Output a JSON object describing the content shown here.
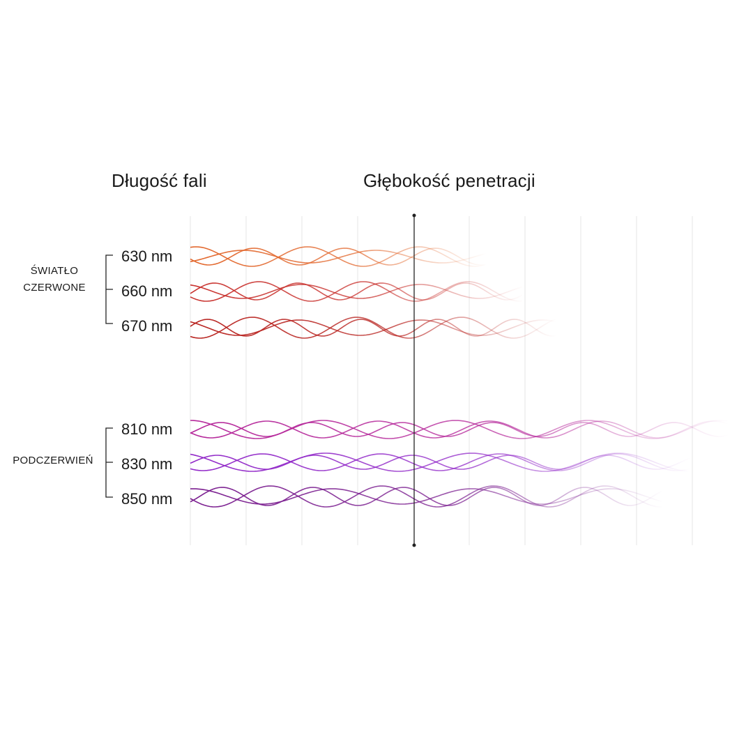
{
  "headings": {
    "wavelength": "Długość fali",
    "penetration_depth": "Głębokość penetracji"
  },
  "groups": [
    {
      "label_line1": "ŚWIATŁO",
      "label_line2": "CZERWONE",
      "items": [
        {
          "label": "630 nm",
          "color": "#e2662b",
          "relative_depth": 0.55
        },
        {
          "label": "660 nm",
          "color": "#c9332f",
          "relative_depth": 0.62
        },
        {
          "label": "670 nm",
          "color": "#b8221e",
          "relative_depth": 0.68
        }
      ]
    },
    {
      "label_line1": "PODCZERWIEŃ",
      "label_line2": "",
      "items": [
        {
          "label": "810 nm",
          "color": "#b5279a",
          "relative_depth": 1.0
        },
        {
          "label": "830 nm",
          "color": "#9128c8",
          "relative_depth": 0.93
        },
        {
          "label": "850 nm",
          "color": "#7a1d8f",
          "relative_depth": 0.88
        }
      ]
    }
  ],
  "colors": {
    "gridline": "#e6e6e6",
    "skin_boundary": "#222222",
    "text": "#1a1a1a"
  }
}
